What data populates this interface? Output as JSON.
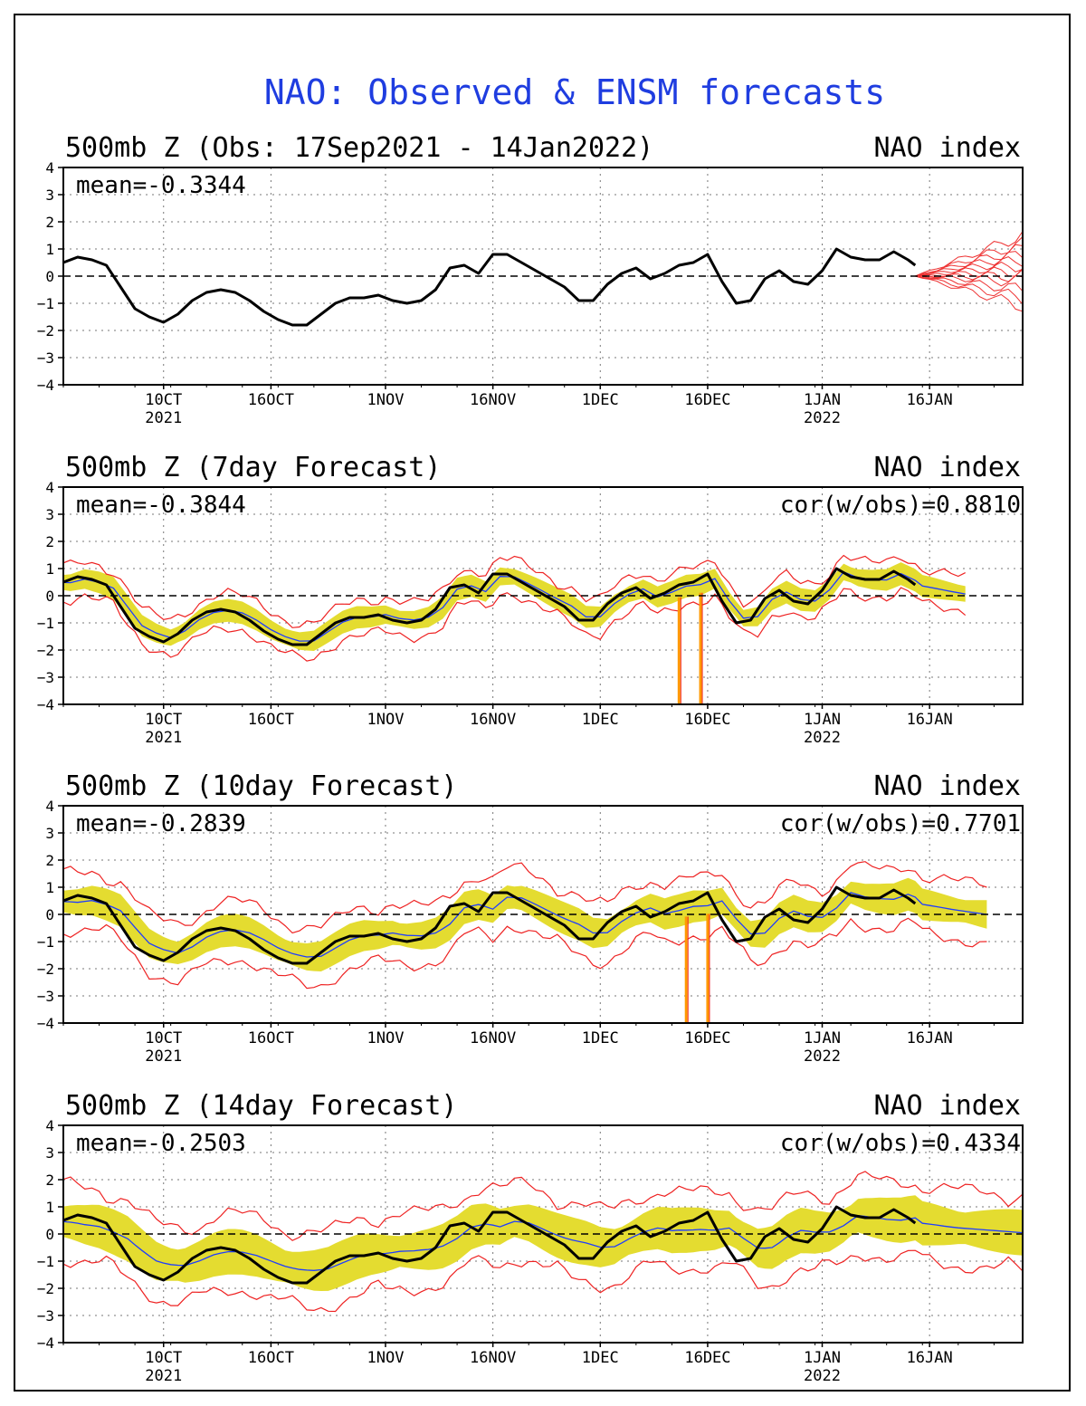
{
  "chart_data": {
    "type": "line",
    "title": "NAO: Observed & ENSM forecasts",
    "x_axis": {
      "start_date": "2021-09-17",
      "end_date": "2022-01-29",
      "ticks": [
        {
          "date": "2021-10-01",
          "label": "10CT",
          "sublabel": "2021"
        },
        {
          "date": "2021-10-16",
          "label": "16OCT",
          "sublabel": ""
        },
        {
          "date": "2021-11-01",
          "label": "1NOV",
          "sublabel": ""
        },
        {
          "date": "2021-11-16",
          "label": "16NOV",
          "sublabel": ""
        },
        {
          "date": "2021-12-01",
          "label": "1DEC",
          "sublabel": ""
        },
        {
          "date": "2021-12-16",
          "label": "16DEC",
          "sublabel": ""
        },
        {
          "date": "2022-01-01",
          "label": "1JAN",
          "sublabel": "2022"
        },
        {
          "date": "2022-01-16",
          "label": "16JAN",
          "sublabel": ""
        }
      ]
    },
    "ylim": [
      -4,
      4
    ],
    "yticks": [
      4,
      3,
      2,
      1,
      0,
      -1,
      -2,
      -3,
      -4
    ],
    "grid": true,
    "colors": {
      "observed": "#000000",
      "ensemble_mean": "#1e3cff",
      "spread": "#e4dc30",
      "bounds": "#ee2222",
      "forecast_members": "#ee3333",
      "title": "#1f3de0"
    },
    "panels": [
      {
        "title": "500mb Z (Obs: 17Sep2021 - 14Jan2022)",
        "right_title": "NAO index",
        "mean_label": "mean=-0.3344",
        "cor_label": "",
        "has_forecast_members": true
      },
      {
        "title": "500mb Z (7day Forecast)",
        "right_title": "NAO index",
        "mean_label": "mean=-0.3844",
        "cor_label": "cor(w/obs)=0.8810",
        "forecast_end": "2022-01-21",
        "spread_width": 0.35,
        "bound_width": 0.6,
        "lag": 1,
        "blend": 0.2,
        "missing_dates": [
          "2021-12-12",
          "2021-12-15"
        ]
      },
      {
        "title": "500mb Z (10day Forecast)",
        "right_title": "NAO index",
        "mean_label": "mean=-0.2839",
        "cor_label": "cor(w/obs)=0.7701",
        "forecast_end": "2022-01-24",
        "spread_width": 0.5,
        "bound_width": 1.0,
        "lag": 2,
        "blend": 0.35,
        "missing_dates": [
          "2021-12-13",
          "2021-12-16"
        ]
      },
      {
        "title": "500mb Z (14day Forecast)",
        "right_title": "NAO index",
        "mean_label": "mean=-0.2503",
        "cor_label": "cor(w/obs)=0.4334",
        "forecast_end": "2022-01-29",
        "spread_width": 0.7,
        "bound_width": 1.3,
        "lag": 3,
        "blend": 0.65,
        "missing_dates": []
      }
    ],
    "observed": {
      "name": "Observed",
      "dates": [
        "2021-09-17",
        "2021-09-19",
        "2021-09-21",
        "2021-09-23",
        "2021-09-25",
        "2021-09-27",
        "2021-09-29",
        "2021-10-01",
        "2021-10-03",
        "2021-10-05",
        "2021-10-07",
        "2021-10-09",
        "2021-10-11",
        "2021-10-13",
        "2021-10-15",
        "2021-10-17",
        "2021-10-19",
        "2021-10-21",
        "2021-10-23",
        "2021-10-25",
        "2021-10-27",
        "2021-10-29",
        "2021-10-31",
        "2021-11-02",
        "2021-11-04",
        "2021-11-06",
        "2021-11-08",
        "2021-11-10",
        "2021-11-12",
        "2021-11-14",
        "2021-11-16",
        "2021-11-18",
        "2021-11-20",
        "2021-11-22",
        "2021-11-24",
        "2021-11-26",
        "2021-11-28",
        "2021-11-30",
        "2021-12-02",
        "2021-12-04",
        "2021-12-06",
        "2021-12-08",
        "2021-12-10",
        "2021-12-12",
        "2021-12-14",
        "2021-12-16",
        "2021-12-18",
        "2021-12-20",
        "2021-12-22",
        "2021-12-24",
        "2021-12-26",
        "2021-12-28",
        "2021-12-30",
        "2022-01-01",
        "2022-01-03",
        "2022-01-05",
        "2022-01-07",
        "2022-01-09",
        "2022-01-11",
        "2022-01-13",
        "2022-01-14"
      ],
      "values": [
        0.5,
        0.7,
        0.6,
        0.4,
        -0.4,
        -1.2,
        -1.5,
        -1.7,
        -1.4,
        -0.9,
        -0.6,
        -0.5,
        -0.6,
        -0.9,
        -1.3,
        -1.6,
        -1.8,
        -1.8,
        -1.4,
        -1.0,
        -0.8,
        -0.8,
        -0.7,
        -0.9,
        -1.0,
        -0.9,
        -0.5,
        0.3,
        0.4,
        0.1,
        0.8,
        0.8,
        0.5,
        0.2,
        -0.1,
        -0.4,
        -0.9,
        -0.9,
        -0.3,
        0.1,
        0.3,
        -0.1,
        0.1,
        0.4,
        0.5,
        0.8,
        -0.2,
        -1.0,
        -0.9,
        -0.1,
        0.2,
        -0.2,
        -0.3,
        0.2,
        1.0,
        0.7,
        0.6,
        0.6,
        0.9,
        0.6,
        0.4
      ]
    },
    "forecast_members_p1": {
      "start_date": "2022-01-14",
      "end_date": "2022-01-29",
      "start_value": 0.0,
      "end_values": [
        1.5,
        1.2,
        1.0,
        0.8,
        0.6,
        0.4,
        0.2,
        0.0,
        -0.2,
        -0.5,
        -0.8,
        -1.1
      ]
    }
  }
}
